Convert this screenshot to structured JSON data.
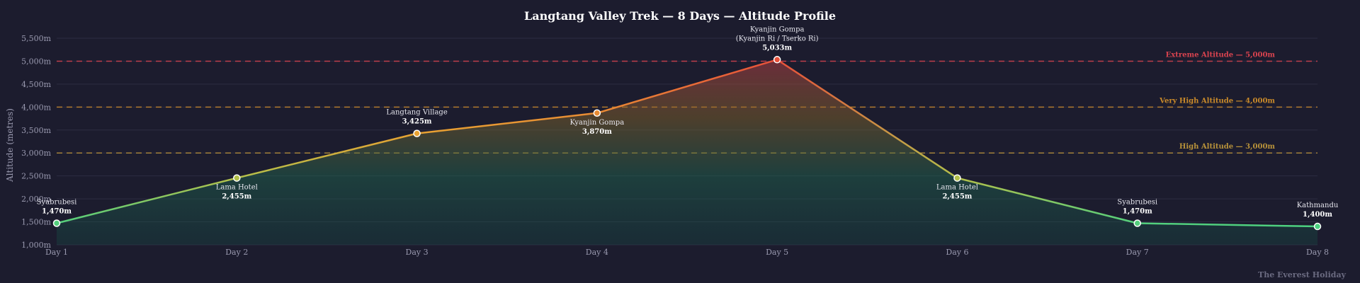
{
  "chart_data": {
    "type": "area",
    "title": "Langtang Valley Trek — 8 Days — Altitude Profile",
    "xlabel": "",
    "ylabel": "Altitude (metres)",
    "ylim": [
      1000,
      5500
    ],
    "yticks": [
      1000,
      1500,
      2000,
      2500,
      3000,
      3500,
      4000,
      4500,
      5000,
      5500
    ],
    "y_tick_format": "{v}m",
    "categories": [
      "Day 1",
      "Day 2",
      "Day 3",
      "Day 4",
      "Day 5",
      "Day 6",
      "Day 7",
      "Day 8"
    ],
    "points": [
      {
        "day": "Day 1",
        "place": [
          "Syabrubesi"
        ],
        "altitude": 1470,
        "altitude_label": "1,470m",
        "label_side": "above"
      },
      {
        "day": "Day 2",
        "place": [
          "Lama Hotel"
        ],
        "altitude": 2455,
        "altitude_label": "2,455m",
        "label_side": "below"
      },
      {
        "day": "Day 3",
        "place": [
          "Langtang Village"
        ],
        "altitude": 3425,
        "altitude_label": "3,425m",
        "label_side": "above"
      },
      {
        "day": "Day 4",
        "place": [
          "Kyanjin Gompa"
        ],
        "altitude": 3870,
        "altitude_label": "3,870m",
        "label_side": "below"
      },
      {
        "day": "Day 5",
        "place": [
          "Kyanjin Gompa",
          "(Kyanjin Ri / Tserko Ri)"
        ],
        "altitude": 5033,
        "altitude_label": "5,033m",
        "label_side": "above"
      },
      {
        "day": "Day 6",
        "place": [
          "Lama Hotel"
        ],
        "altitude": 2455,
        "altitude_label": "2,455m",
        "label_side": "below"
      },
      {
        "day": "Day 7",
        "place": [
          "Syabrubesi"
        ],
        "altitude": 1470,
        "altitude_label": "1,470m",
        "label_side": "above"
      },
      {
        "day": "Day 8",
        "place": [
          "Kathmandu"
        ],
        "altitude": 1400,
        "altitude_label": "1,400m",
        "label_side": "above"
      }
    ],
    "reference_lines": [
      {
        "value": 5000,
        "label": "Extreme Altitude — 5,000m",
        "color": "#d9434f"
      },
      {
        "value": 4000,
        "label": "Very High Altitude — 4,000m",
        "color": "#c98a2a"
      },
      {
        "value": 3000,
        "label": "High Altitude — 3,000m",
        "color": "#b8923a"
      }
    ],
    "grid": true,
    "legend": "none"
  },
  "watermark": "The Everest Holiday",
  "colors": {
    "background": "#1c1c2e",
    "low": "#4cd080",
    "mid": "#e8b830",
    "high": "#e8503a"
  }
}
